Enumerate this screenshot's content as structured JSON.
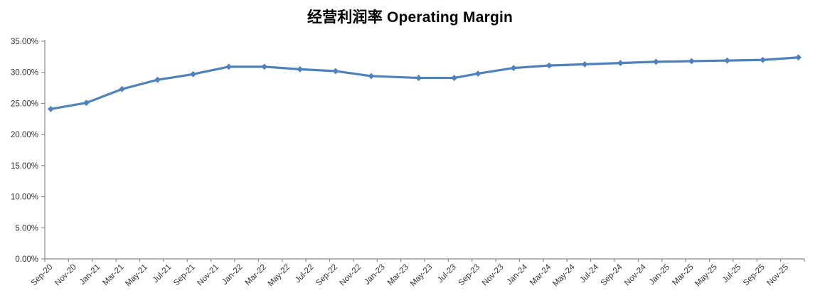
{
  "title": "经营利润率 Operating Margin",
  "chart_data": {
    "type": "line",
    "title": "经营利润率 Operating Margin",
    "xlabel": "",
    "ylabel": "",
    "ylim": [
      0,
      35
    ],
    "y_tick_values": [
      0,
      5,
      10,
      15,
      20,
      25,
      30,
      35
    ],
    "y_tick_labels": [
      "0.00%",
      "5.00%",
      "10.00%",
      "15.00%",
      "20.00%",
      "25.00%",
      "30.00%",
      "35.00%"
    ],
    "grid": false,
    "legend": "none",
    "marker": "diamond",
    "line_color": "#4F81BD",
    "axis_color": "#8C8C8C",
    "label_color": "#333333",
    "x_axis_total_months": 64,
    "x_tick_interval_months": 2,
    "x_tick_labels": [
      "Sep-20",
      "Nov-20",
      "Jan-21",
      "Mar-21",
      "May-21",
      "Jul-21",
      "Sep-21",
      "Nov-21",
      "Jan-22",
      "Mar-22",
      "May-22",
      "Jul-22",
      "Sep-22",
      "Nov-22",
      "Jan-23",
      "Mar-23",
      "May-23",
      "Jul-23",
      "Sep-23",
      "Nov-23",
      "Jan-24",
      "Mar-24",
      "May-24",
      "Jul-24",
      "Sep-24",
      "Nov-24",
      "Jan-25",
      "Mar-25",
      "May-25",
      "Jul-25",
      "Sep-25",
      "Nov-25"
    ],
    "series": [
      {
        "name": "Operating Margin",
        "x_dates": [
          "Sep-20",
          "Dec-20",
          "Mar-21",
          "Jun-21",
          "Sep-21",
          "Dec-21",
          "Mar-22",
          "Jun-22",
          "Sep-22",
          "Dec-22",
          "Apr-23",
          "Jul-23",
          "Sep-23",
          "Dec-23",
          "Mar-24",
          "Jun-24",
          "Sep-24",
          "Dec-24",
          "Mar-25",
          "Jun-25",
          "Sep-25",
          "Dec-25"
        ],
        "x_month_offsets": [
          0,
          3,
          6,
          9,
          12,
          15,
          18,
          21,
          24,
          27,
          31,
          34,
          36,
          39,
          42,
          45,
          48,
          51,
          54,
          57,
          60,
          63
        ],
        "values": [
          24.1,
          25.1,
          27.3,
          28.8,
          29.7,
          30.9,
          30.9,
          30.5,
          30.2,
          29.4,
          29.1,
          29.1,
          29.8,
          30.7,
          31.1,
          31.3,
          31.5,
          31.7,
          31.8,
          31.9,
          32.0,
          32.4
        ]
      }
    ]
  }
}
